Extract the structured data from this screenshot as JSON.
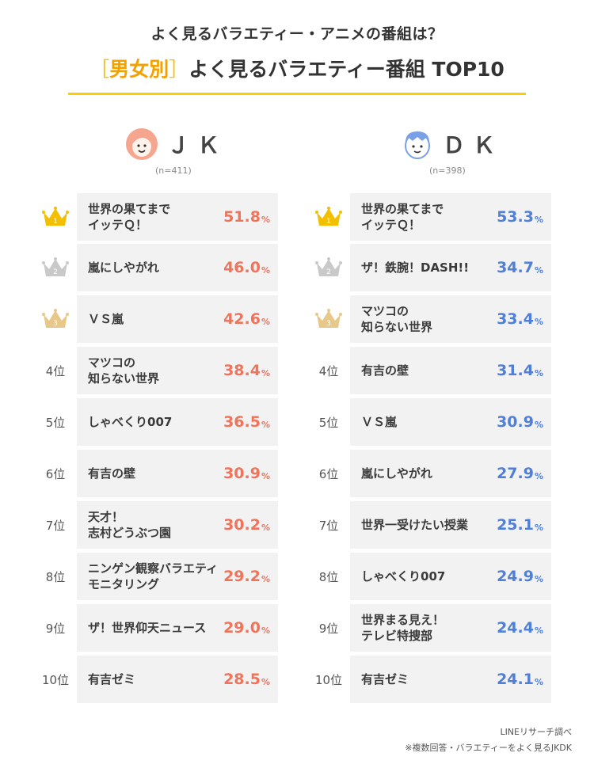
{
  "header": {
    "subtitle": "よく見るバラエティー・アニメの番組は？",
    "title_bracket_open": "［",
    "title_highlight": "男女別",
    "title_bracket_close": "］",
    "title_rest": "よく見るバラエティー番組 TOP10"
  },
  "colors": {
    "accent": "#f6d000",
    "jk": "#f0735c",
    "dk": "#4f7fd9",
    "gold": "#f2c000",
    "silver": "#c9c9c9",
    "bronze": "#e8c888"
  },
  "chart_data": {
    "type": "table",
    "title": "［男女別］よく見るバラエティー番組 TOP10",
    "percent_unit": "%",
    "groups": [
      {
        "key": "jk",
        "label": "ＪＫ",
        "n": "(n=411)",
        "items": [
          {
            "rank": "1",
            "name": "世界の果てまで\nイッテＱ！",
            "value": "51.8"
          },
          {
            "rank": "2",
            "name": "嵐にしやがれ",
            "value": "46.0"
          },
          {
            "rank": "3",
            "name": "ＶＳ嵐",
            "value": "42.6"
          },
          {
            "rank": "4位",
            "name": "マツコの\n知らない世界",
            "value": "38.4"
          },
          {
            "rank": "5位",
            "name": "しゃべくり007",
            "value": "36.5"
          },
          {
            "rank": "6位",
            "name": "有吉の壁",
            "value": "30.9"
          },
          {
            "rank": "7位",
            "name": "天才！\n志村どうぶつ園",
            "value": "30.2"
          },
          {
            "rank": "8位",
            "name": "ニンゲン観察バラエティ\nモニタリング",
            "value": "29.2"
          },
          {
            "rank": "9位",
            "name": "ザ！世界仰天ニュース",
            "value": "29.0"
          },
          {
            "rank": "10位",
            "name": "有吉ゼミ",
            "value": "28.5"
          }
        ]
      },
      {
        "key": "dk",
        "label": "ＤＫ",
        "n": "(n=398)",
        "items": [
          {
            "rank": "1",
            "name": "世界の果てまで\nイッテＱ！",
            "value": "53.3"
          },
          {
            "rank": "2",
            "name": "ザ！鉄腕！DASH!!",
            "value": "34.7"
          },
          {
            "rank": "3",
            "name": "マツコの\n知らない世界",
            "value": "33.4"
          },
          {
            "rank": "4位",
            "name": "有吉の壁",
            "value": "31.4"
          },
          {
            "rank": "5位",
            "name": "ＶＳ嵐",
            "value": "30.9"
          },
          {
            "rank": "6位",
            "name": "嵐にしやがれ",
            "value": "27.9"
          },
          {
            "rank": "7位",
            "name": "世界一受けたい授業",
            "value": "25.1"
          },
          {
            "rank": "8位",
            "name": "しゃべくり007",
            "value": "24.9"
          },
          {
            "rank": "9位",
            "name": "世界まる見え！\nテレビ特捜部",
            "value": "24.4"
          },
          {
            "rank": "10位",
            "name": "有吉ゼミ",
            "value": "24.1"
          }
        ]
      }
    ]
  },
  "footer": {
    "source": "LINEリサーチ調べ",
    "note": "※複数回答・バラエティーをよく見るJKDK"
  }
}
